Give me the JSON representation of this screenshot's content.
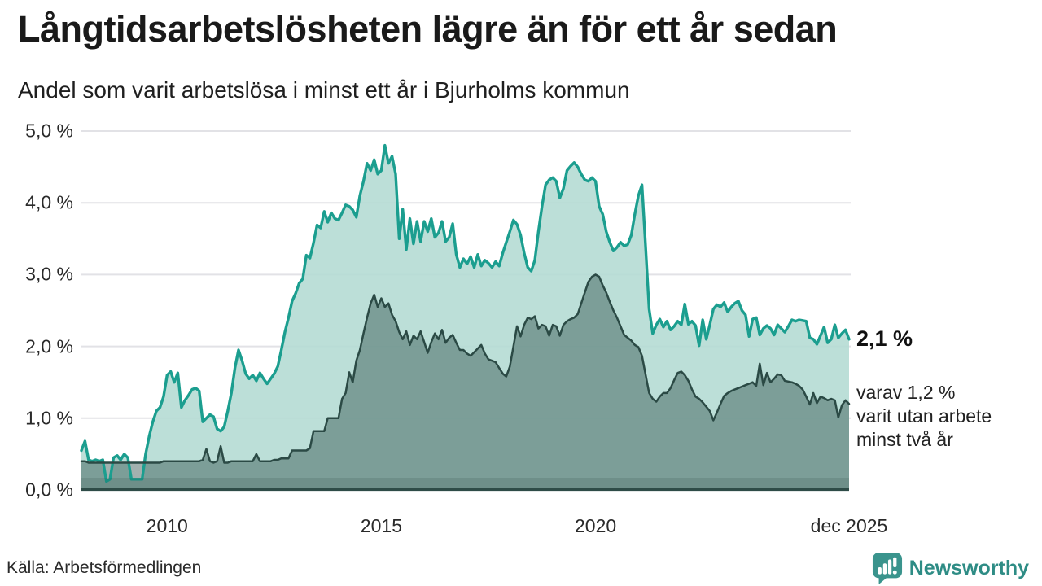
{
  "title": "Långtidsarbetslösheten lägre än för ett år sedan",
  "subtitle": "Andel som varit arbetslösa i minst ett år i Bjurholms kommun",
  "source": "Källa: Arbetsförmedlingen",
  "logo": {
    "text": "Newsworthy",
    "icon": "bar-chart-speech-bubble",
    "color": "#3a948d"
  },
  "annotations": {
    "primary_value": "2,1 %",
    "secondary_lines": [
      "varav 1,2 %",
      "varit utan arbete",
      "minst två år"
    ]
  },
  "chart_data": {
    "type": "area",
    "title": "Andel som varit arbetslösa i minst ett år i Bjurholms kommun",
    "x_unit": "month",
    "x_start": "2008-01",
    "x_end": "2025-12",
    "ylim": [
      0,
      5
    ],
    "grid": true,
    "yticks": [
      {
        "value": 0,
        "label": "0,0 %"
      },
      {
        "value": 1,
        "label": "1,0 %"
      },
      {
        "value": 2,
        "label": "2,0 %"
      },
      {
        "value": 3,
        "label": "3,0 %"
      },
      {
        "value": 4,
        "label": "4,0 %"
      },
      {
        "value": 5,
        "label": "5,0 %"
      }
    ],
    "xticks": [
      {
        "label": "2010",
        "month_index": 24
      },
      {
        "label": "2015",
        "month_index": 84
      },
      {
        "label": "2020",
        "month_index": 144
      },
      {
        "label": "dec 2025",
        "month_index": 215
      }
    ],
    "colors": {
      "grid": "#e2e2e6",
      "axis": "#2e4c47",
      "band": "rgba(36,68,64,0.16)"
    },
    "series": [
      {
        "name": "Arbetslösa minst ett år",
        "current_value": 2.1,
        "stroke": "#1b9e8f",
        "stroke_width": 3.4,
        "fill": "#b5dbd4",
        "fill_opacity": 0.9,
        "values": [
          0.55,
          0.68,
          0.42,
          0.4,
          0.42,
          0.4,
          0.42,
          0.12,
          0.15,
          0.45,
          0.48,
          0.42,
          0.5,
          0.45,
          0.15,
          0.15,
          0.15,
          0.15,
          0.5,
          0.75,
          0.95,
          1.1,
          1.15,
          1.3,
          1.6,
          1.65,
          1.5,
          1.63,
          1.15,
          1.25,
          1.32,
          1.4,
          1.42,
          1.38,
          0.95,
          1.0,
          1.05,
          1.02,
          0.85,
          0.82,
          0.88,
          1.1,
          1.35,
          1.7,
          1.95,
          1.8,
          1.62,
          1.55,
          1.6,
          1.52,
          1.63,
          1.55,
          1.48,
          1.55,
          1.62,
          1.72,
          1.95,
          2.2,
          2.4,
          2.63,
          2.74,
          2.88,
          2.94,
          3.27,
          3.23,
          3.44,
          3.69,
          3.65,
          3.88,
          3.73,
          3.86,
          3.78,
          3.76,
          3.86,
          3.97,
          3.95,
          3.9,
          3.8,
          4.1,
          4.3,
          4.55,
          4.45,
          4.6,
          4.4,
          4.45,
          4.8,
          4.55,
          4.65,
          4.4,
          3.5,
          3.91,
          3.35,
          3.78,
          3.43,
          3.74,
          3.46,
          3.74,
          3.6,
          3.78,
          3.52,
          3.58,
          3.74,
          3.46,
          3.52,
          3.71,
          3.28,
          3.1,
          3.22,
          3.15,
          3.25,
          3.1,
          3.28,
          3.12,
          3.2,
          3.16,
          3.1,
          3.18,
          3.12,
          3.3,
          3.45,
          3.6,
          3.76,
          3.7,
          3.55,
          3.3,
          3.1,
          3.05,
          3.2,
          3.6,
          3.95,
          4.25,
          4.32,
          4.35,
          4.3,
          4.07,
          4.2,
          4.45,
          4.51,
          4.56,
          4.5,
          4.4,
          4.32,
          4.3,
          4.35,
          4.3,
          3.95,
          3.84,
          3.6,
          3.45,
          3.33,
          3.38,
          3.45,
          3.4,
          3.42,
          3.55,
          3.84,
          4.1,
          4.25,
          3.4,
          2.52,
          2.18,
          2.3,
          2.38,
          2.27,
          2.35,
          2.23,
          2.28,
          2.35,
          2.3,
          2.59,
          2.31,
          2.35,
          2.29,
          2.01,
          2.37,
          2.1,
          2.3,
          2.52,
          2.58,
          2.55,
          2.61,
          2.48,
          2.55,
          2.6,
          2.63,
          2.5,
          2.44,
          2.14,
          2.38,
          2.4,
          2.16,
          2.25,
          2.29,
          2.25,
          2.16,
          2.3,
          2.25,
          2.2,
          2.28,
          2.37,
          2.35,
          2.37,
          2.36,
          2.35,
          2.12,
          2.1,
          2.03,
          2.15,
          2.27,
          2.05,
          2.1,
          2.3,
          2.12,
          2.18,
          2.23,
          2.1
        ]
      },
      {
        "name": "Arbetslösa minst två år",
        "current_value": 1.2,
        "stroke": "#2b4a45",
        "stroke_width": 2.5,
        "fill": "rgba(36,68,64,0.42)",
        "fill_opacity": 1,
        "values": [
          0.4,
          0.4,
          0.38,
          0.38,
          0.38,
          0.38,
          0.38,
          0.38,
          0.38,
          0.38,
          0.38,
          0.38,
          0.38,
          0.38,
          0.38,
          0.38,
          0.38,
          0.38,
          0.38,
          0.38,
          0.38,
          0.38,
          0.38,
          0.4,
          0.4,
          0.4,
          0.4,
          0.4,
          0.4,
          0.4,
          0.4,
          0.4,
          0.4,
          0.4,
          0.42,
          0.57,
          0.4,
          0.38,
          0.4,
          0.61,
          0.38,
          0.38,
          0.4,
          0.4,
          0.4,
          0.4,
          0.4,
          0.4,
          0.4,
          0.5,
          0.4,
          0.4,
          0.4,
          0.4,
          0.42,
          0.42,
          0.44,
          0.44,
          0.44,
          0.55,
          0.55,
          0.55,
          0.55,
          0.55,
          0.58,
          0.82,
          0.82,
          0.82,
          0.82,
          1.0,
          1.0,
          1.0,
          1.0,
          1.27,
          1.35,
          1.64,
          1.5,
          1.8,
          1.95,
          2.18,
          2.4,
          2.6,
          2.72,
          2.55,
          2.67,
          2.55,
          2.6,
          2.44,
          2.35,
          2.2,
          2.1,
          2.21,
          2.02,
          2.15,
          2.1,
          2.21,
          2.06,
          1.91,
          2.06,
          2.18,
          2.1,
          2.23,
          2.05,
          2.12,
          2.16,
          2.05,
          1.95,
          1.95,
          1.9,
          1.87,
          1.92,
          1.97,
          2.02,
          1.9,
          1.82,
          1.8,
          1.78,
          1.7,
          1.62,
          1.58,
          1.72,
          2.0,
          2.28,
          2.14,
          2.3,
          2.4,
          2.38,
          2.42,
          2.25,
          2.3,
          2.28,
          2.15,
          2.3,
          2.28,
          2.15,
          2.3,
          2.35,
          2.38,
          2.4,
          2.45,
          2.6,
          2.75,
          2.9,
          2.97,
          3.0,
          2.97,
          2.85,
          2.75,
          2.62,
          2.5,
          2.4,
          2.28,
          2.16,
          2.12,
          2.08,
          2.02,
          1.99,
          1.87,
          1.61,
          1.35,
          1.27,
          1.23,
          1.3,
          1.35,
          1.35,
          1.42,
          1.53,
          1.63,
          1.65,
          1.6,
          1.52,
          1.4,
          1.3,
          1.27,
          1.22,
          1.16,
          1.1,
          0.97,
          1.08,
          1.2,
          1.31,
          1.35,
          1.38,
          1.4,
          1.42,
          1.44,
          1.46,
          1.48,
          1.5,
          1.45,
          1.76,
          1.46,
          1.63,
          1.5,
          1.55,
          1.61,
          1.6,
          1.52,
          1.51,
          1.5,
          1.48,
          1.45,
          1.4,
          1.3,
          1.19,
          1.35,
          1.21,
          1.3,
          1.28,
          1.25,
          1.27,
          1.25,
          1.01,
          1.18,
          1.25,
          1.2
        ]
      }
    ]
  }
}
